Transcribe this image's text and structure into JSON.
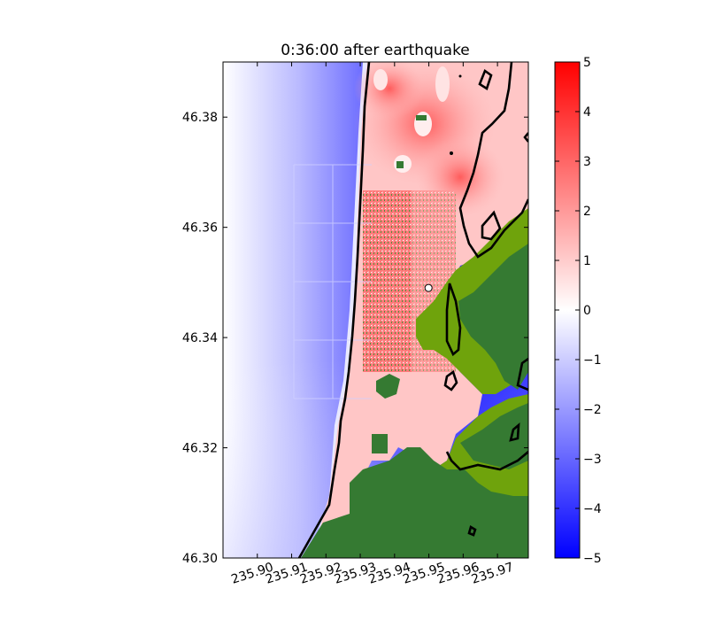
{
  "chart_data": {
    "type": "heatmap",
    "title": "0:36:00 after earthquake",
    "xlabel": "",
    "ylabel": "",
    "xlim": [
      235.89,
      235.979
    ],
    "ylim": [
      46.3,
      46.39
    ],
    "x_ticks": [
      235.9,
      235.91,
      235.92,
      235.93,
      235.94,
      235.95,
      235.96,
      235.97
    ],
    "x_tick_labels": [
      "235.90",
      "235.91",
      "235.92",
      "235.93",
      "235.94",
      "235.95",
      "235.96",
      "235.97"
    ],
    "y_ticks": [
      46.3,
      46.32,
      46.34,
      46.36,
      46.38
    ],
    "y_tick_labels": [
      "46.30",
      "46.32",
      "46.34",
      "46.36",
      "46.38"
    ],
    "colorbar": {
      "min": -5,
      "max": 5,
      "ticks": [
        5,
        4,
        3,
        2,
        1,
        0,
        -1,
        -2,
        -3,
        -4,
        -5
      ],
      "tick_labels": [
        "5",
        "4",
        "3",
        "2",
        "1",
        "0",
        "−1",
        "−2",
        "−3",
        "−4",
        "−5"
      ],
      "colormap": "bwr",
      "colors": {
        "low": "#0000ff",
        "mid": "#ffffff",
        "high": "#ff0000"
      }
    },
    "land_colors": {
      "dry_land": "#357a32",
      "inundated_land": "#6fa30c"
    },
    "grid": false,
    "marker": {
      "x": 235.9499,
      "y": 46.349,
      "color": "#ffffff"
    }
  }
}
